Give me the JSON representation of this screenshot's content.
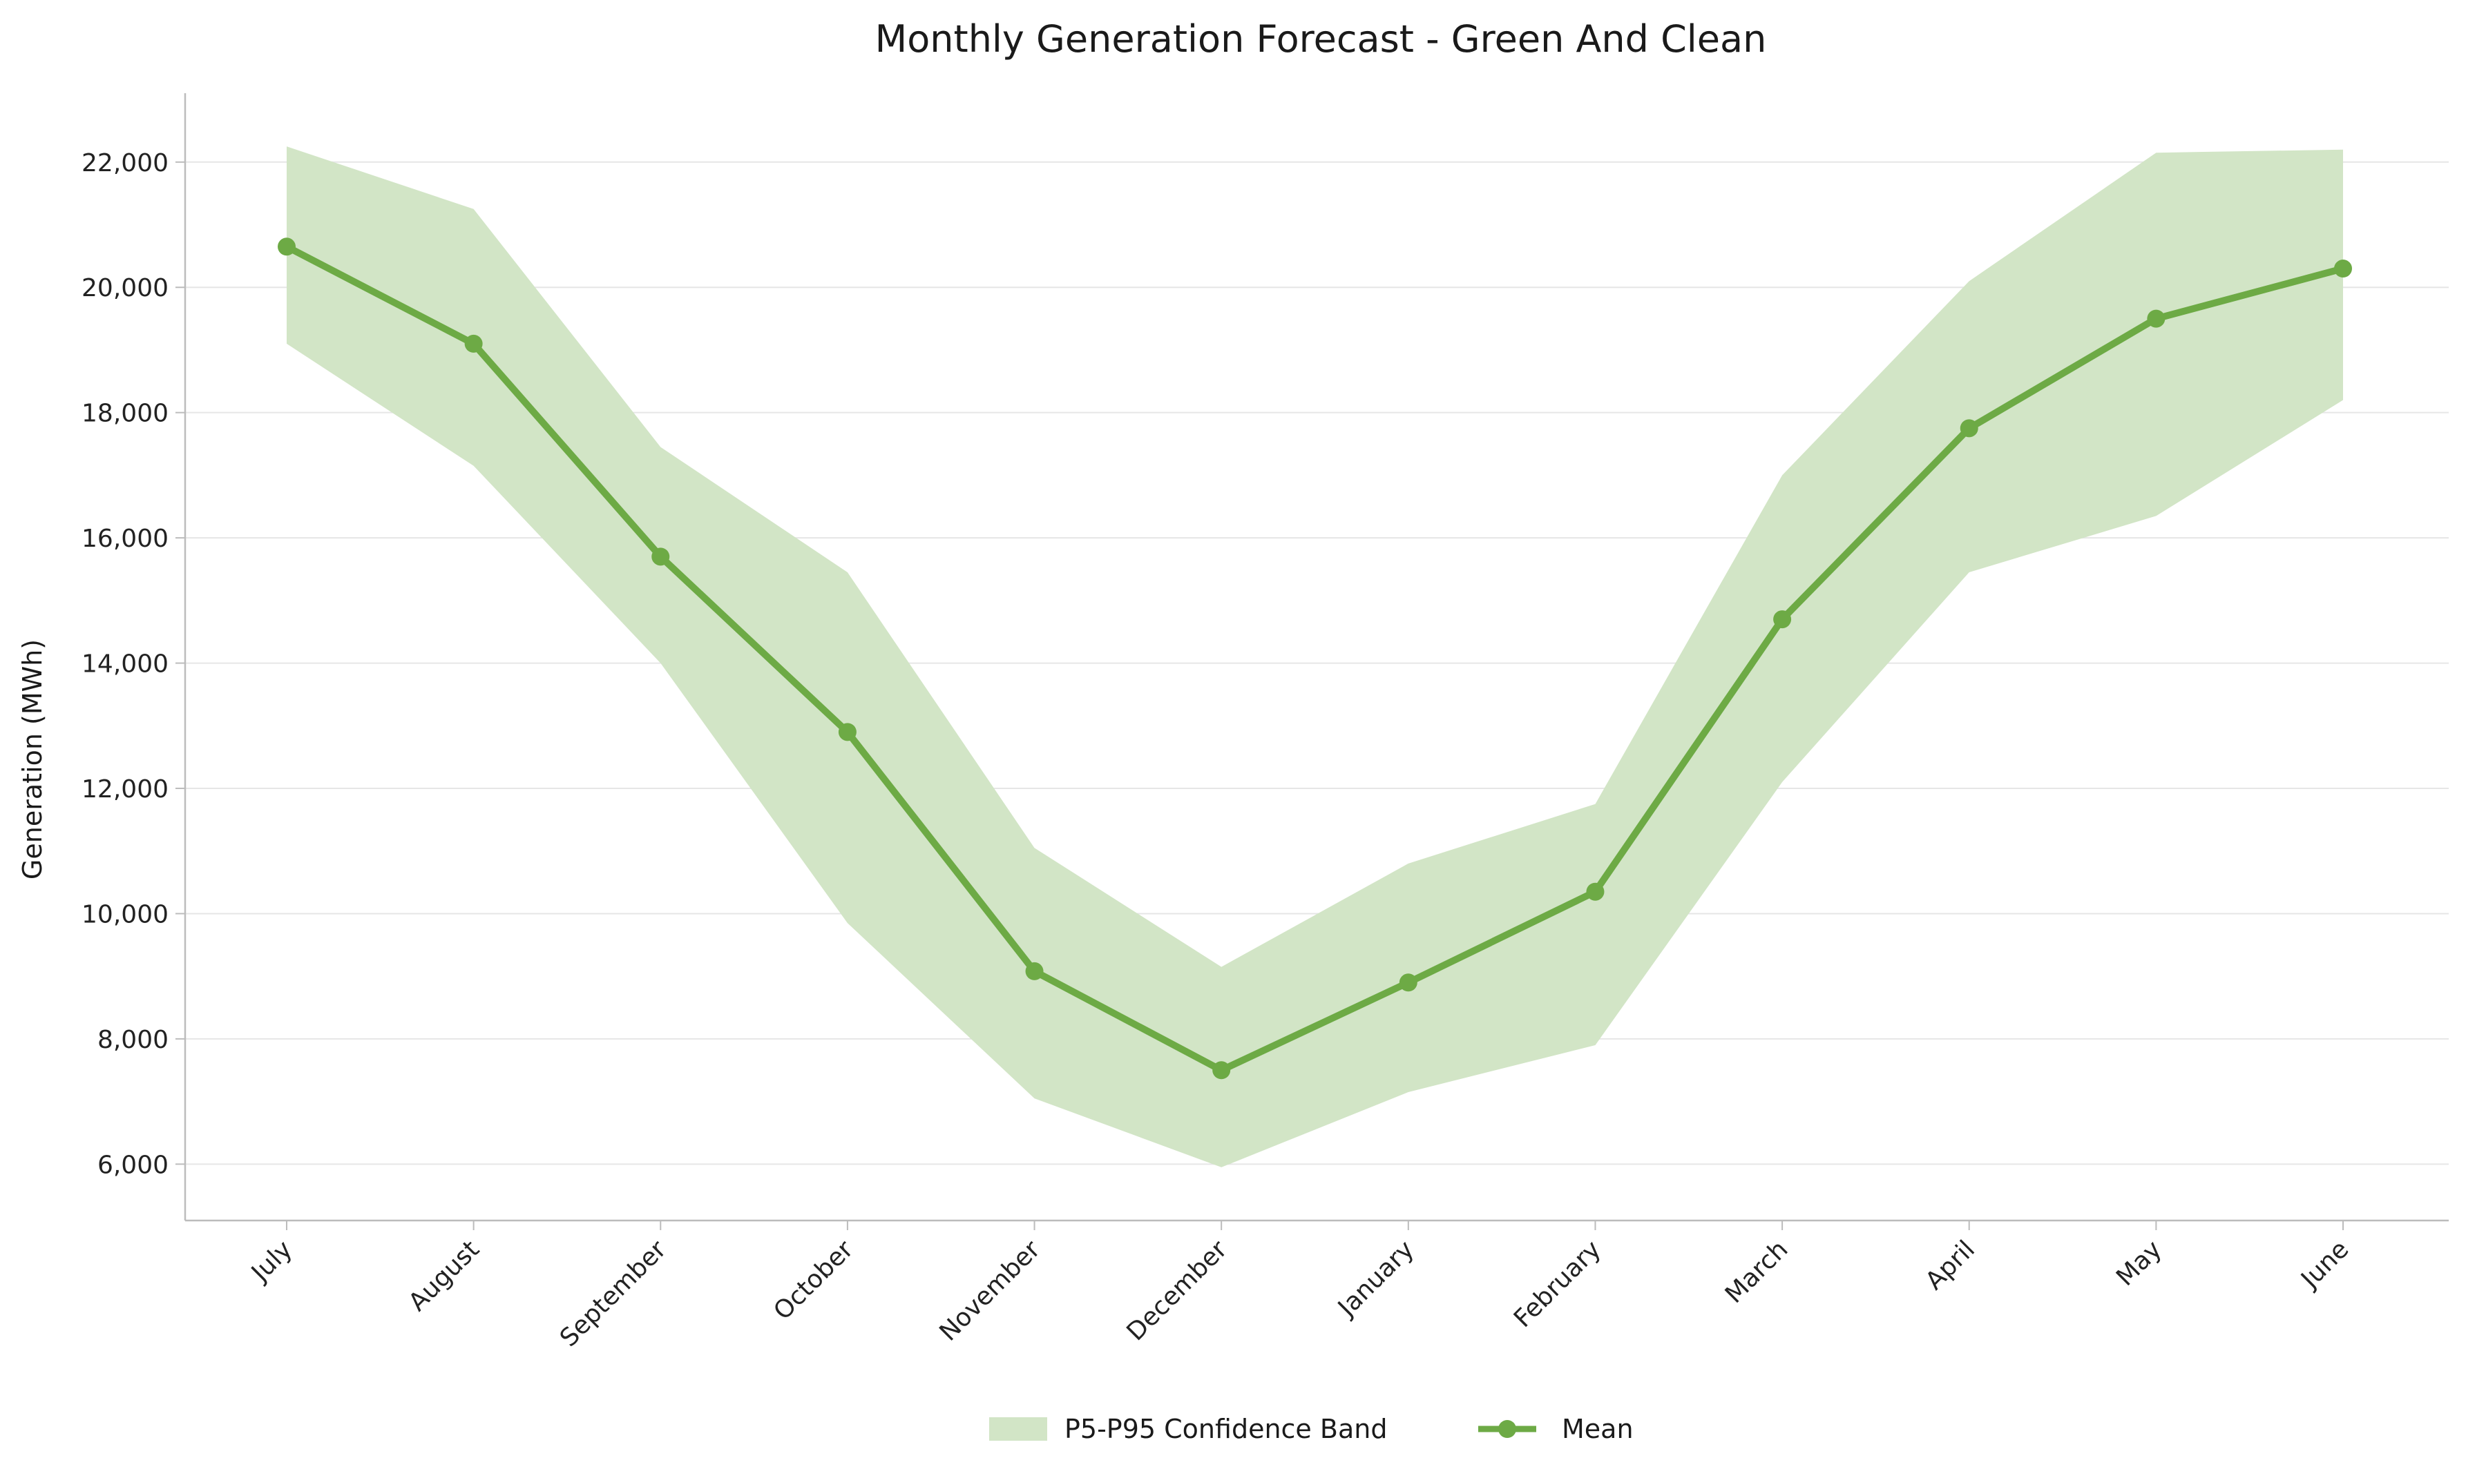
{
  "chart_data": {
    "type": "line",
    "title": "Monthly Generation Forecast - Green And Clean",
    "xlabel": "",
    "ylabel": "Generation (MWh)",
    "categories": [
      "July",
      "August",
      "September",
      "October",
      "November",
      "December",
      "January",
      "February",
      "March",
      "April",
      "May",
      "June"
    ],
    "ylim": [
      5100,
      23100
    ],
    "yticks": [
      6000,
      8000,
      10000,
      12000,
      14000,
      16000,
      18000,
      20000,
      22000
    ],
    "ytick_labels": [
      "6,000",
      "8,000",
      "10,000",
      "12,000",
      "14,000",
      "16,000",
      "18,000",
      "20,000",
      "22,000"
    ],
    "grid": "horizontal",
    "legend_position": "bottom-center",
    "band": {
      "name": "P5-P95 Confidence Band",
      "lower": [
        19100,
        17150,
        14000,
        9850,
        7050,
        5950,
        7150,
        7900,
        12100,
        15450,
        16350,
        18200
      ],
      "upper": [
        22250,
        21250,
        17450,
        15450,
        11050,
        9150,
        10800,
        11750,
        17000,
        20100,
        22150,
        22200
      ],
      "color": "#d2e5c6"
    },
    "series": [
      {
        "name": "Mean",
        "values": [
          20650,
          19100,
          15700,
          12900,
          9080,
          7500,
          8900,
          10350,
          14700,
          17750,
          19500,
          20300
        ],
        "color": "#6daa45"
      }
    ]
  }
}
